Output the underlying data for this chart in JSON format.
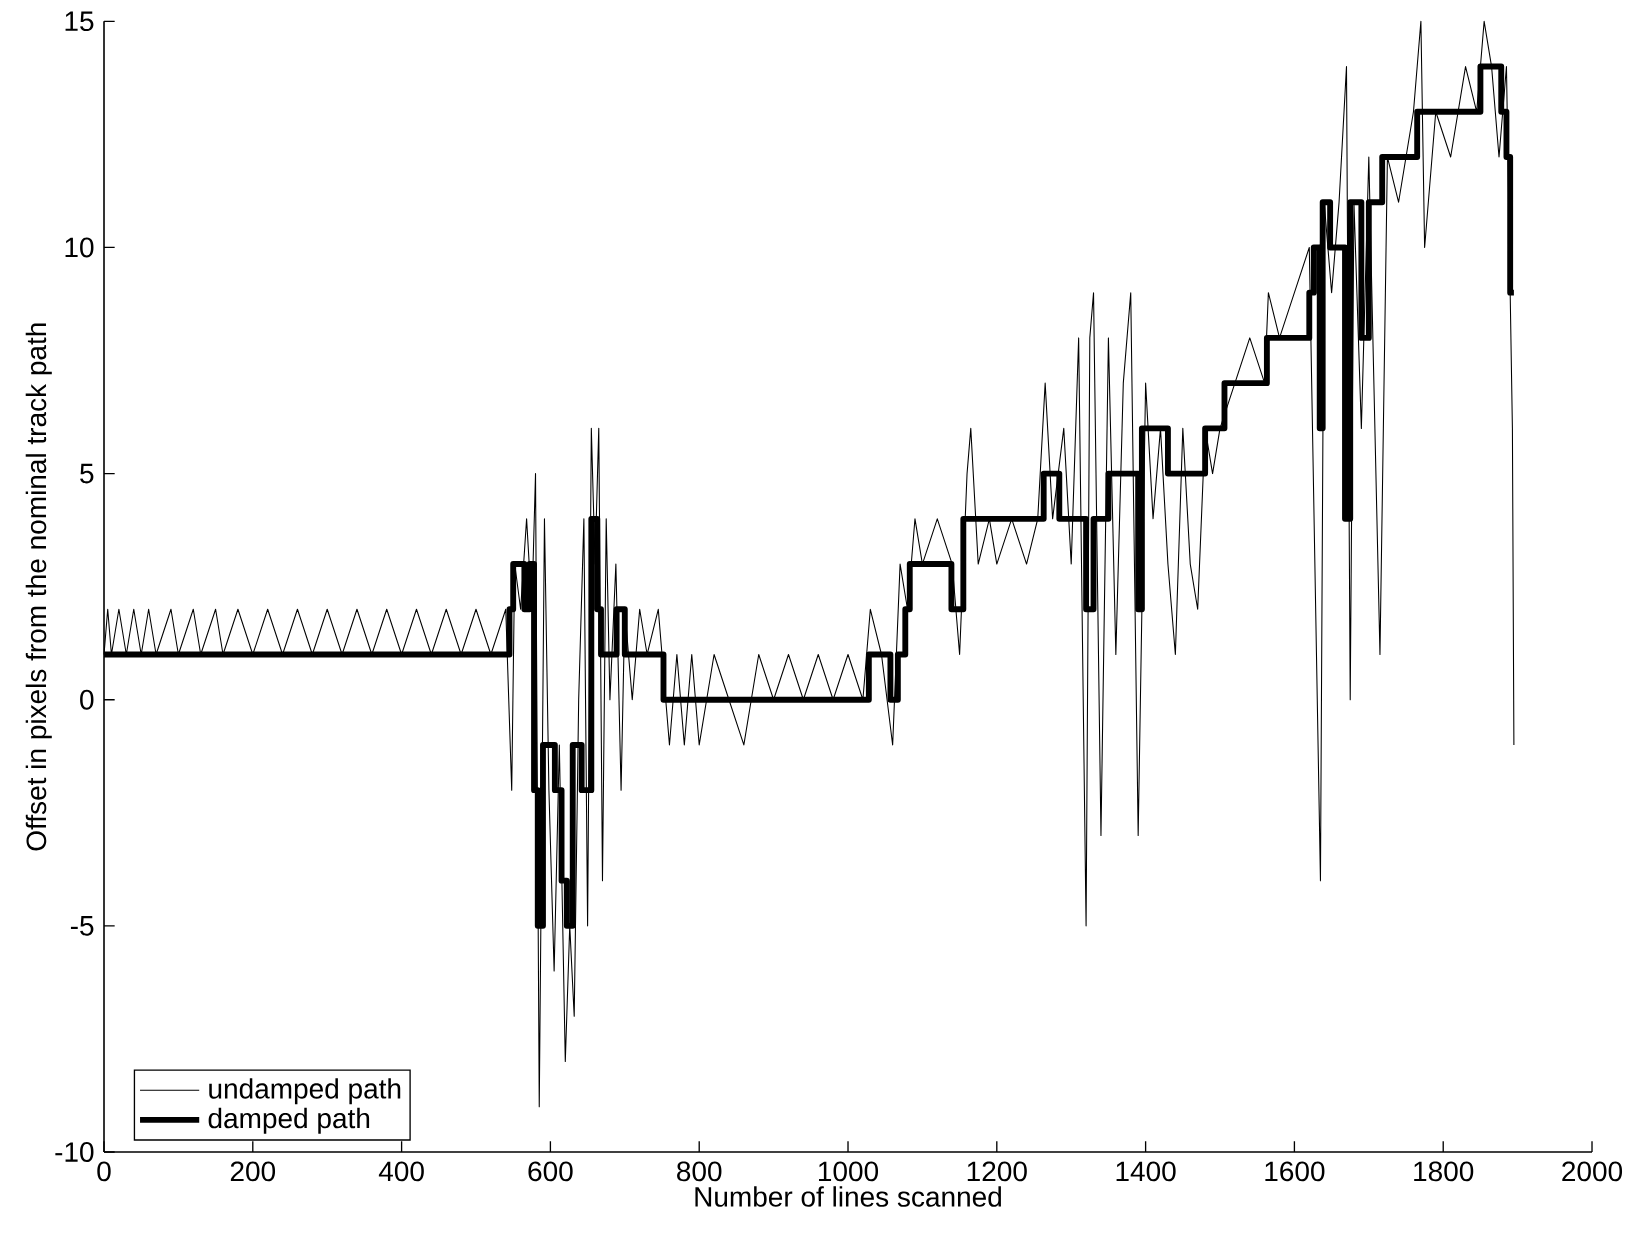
{
  "chart_data": {
    "type": "line",
    "xlabel": "Number of lines scanned",
    "ylabel": "Offset in pixels from the nominal track path",
    "xlim": [
      0,
      2000
    ],
    "ylim": [
      -10,
      15
    ],
    "xticks": [
      0,
      200,
      400,
      600,
      800,
      1000,
      1200,
      1400,
      1600,
      1800,
      2000
    ],
    "yticks": [
      -10,
      -5,
      0,
      5,
      10,
      15
    ],
    "grid": false,
    "legend": "bottom left",
    "marker": "none",
    "line_style": "solid",
    "series": [
      {
        "name": "undamped path",
        "color": "#000000",
        "x": [
          0,
          5,
          10,
          20,
          30,
          40,
          50,
          60,
          70,
          90,
          100,
          120,
          130,
          150,
          160,
          180,
          200,
          220,
          240,
          260,
          280,
          300,
          320,
          340,
          360,
          380,
          400,
          420,
          440,
          460,
          480,
          500,
          520,
          540,
          548,
          552,
          560,
          568,
          575,
          580,
          585,
          592,
          598,
          605,
          612,
          620,
          626,
          632,
          638,
          645,
          650,
          655,
          660,
          665,
          670,
          675,
          680,
          688,
          695,
          700,
          710,
          720,
          730,
          745,
          755,
          760,
          770,
          780,
          790,
          800,
          820,
          840,
          860,
          880,
          900,
          920,
          940,
          960,
          980,
          1000,
          1020,
          1030,
          1045,
          1060,
          1070,
          1080,
          1090,
          1100,
          1120,
          1140,
          1150,
          1160,
          1165,
          1175,
          1190,
          1200,
          1220,
          1240,
          1255,
          1265,
          1275,
          1290,
          1300,
          1310,
          1320,
          1325,
          1330,
          1340,
          1350,
          1360,
          1370,
          1380,
          1390,
          1400,
          1410,
          1420,
          1430,
          1440,
          1450,
          1460,
          1470,
          1480,
          1490,
          1500,
          1520,
          1540,
          1560,
          1565,
          1580,
          1600,
          1620,
          1635,
          1640,
          1650,
          1660,
          1670,
          1675,
          1680,
          1690,
          1700,
          1715,
          1725,
          1740,
          1760,
          1770,
          1775,
          1790,
          1810,
          1830,
          1845,
          1855,
          1865,
          1875,
          1885,
          1893,
          1895
        ],
        "values": [
          1,
          2,
          1,
          2,
          1,
          2,
          1,
          2,
          1,
          2,
          1,
          2,
          1,
          2,
          1,
          2,
          1,
          2,
          1,
          2,
          1,
          2,
          1,
          2,
          1,
          2,
          1,
          2,
          1,
          2,
          1,
          2,
          1,
          2,
          -2,
          3,
          2,
          4,
          2,
          5,
          -9,
          4,
          -2,
          -6,
          -1,
          -8,
          -5,
          -7,
          0,
          4,
          -5,
          6,
          3,
          6,
          -4,
          4,
          0,
          3,
          -2,
          2,
          0,
          2,
          1,
          2,
          0,
          -1,
          1,
          -1,
          1,
          -1,
          1,
          0,
          -1,
          1,
          0,
          1,
          0,
          1,
          0,
          1,
          0,
          2,
          1,
          -1,
          3,
          2,
          4,
          3,
          4,
          3,
          1,
          5,
          6,
          3,
          4,
          3,
          4,
          3,
          4,
          7,
          4,
          6,
          3,
          8,
          -5,
          8,
          9,
          -3,
          8,
          1,
          7,
          9,
          -3,
          7,
          4,
          6,
          3,
          1,
          6,
          3,
          2,
          6,
          5,
          6,
          7,
          8,
          7,
          9,
          8,
          9,
          10,
          -4,
          11,
          9,
          11,
          14,
          0,
          11,
          6,
          12,
          1,
          12,
          11,
          13,
          15,
          10,
          13,
          12,
          14,
          13,
          15,
          14,
          12,
          14,
          6,
          -1
        ]
      },
      {
        "name": "damped path",
        "type": "step",
        "color": "#000000",
        "x": [
          0,
          545,
          550,
          565,
          572,
          578,
          583,
          590,
          606,
          615,
          622,
          630,
          642,
          655,
          663,
          668,
          689,
          700,
          752,
          1028,
          1057,
          1067,
          1077,
          1083,
          1139,
          1155,
          1263,
          1284,
          1320,
          1330,
          1350,
          1390,
          1395,
          1430,
          1480,
          1506,
          1563,
          1620,
          1626,
          1634,
          1638,
          1648,
          1668,
          1675,
          1690,
          1700,
          1718,
          1765,
          1850,
          1878,
          1885,
          1890,
          1895
        ],
        "values": [
          1,
          2,
          3,
          2,
          3,
          -2,
          -5,
          -1,
          -2,
          -4,
          -5,
          -1,
          -2,
          4,
          2,
          1,
          2,
          1,
          0,
          1,
          0,
          1,
          2,
          3,
          2,
          4,
          5,
          4,
          2,
          4,
          5,
          2,
          6,
          5,
          6,
          7,
          8,
          9,
          10,
          6,
          11,
          10,
          4,
          11,
          8,
          11,
          12,
          13,
          14,
          13,
          12,
          9,
          9
        ]
      }
    ]
  }
}
